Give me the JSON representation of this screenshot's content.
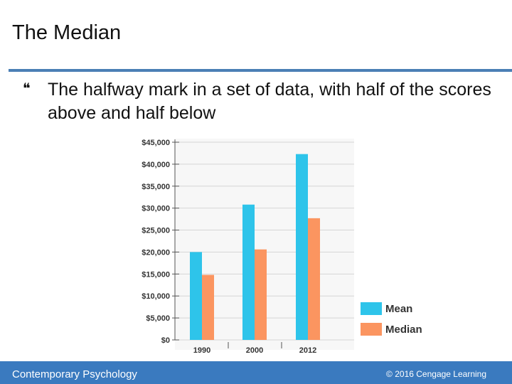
{
  "slide": {
    "title": "The Median",
    "bullet_icon": "bullet-arrow-icon",
    "bullet_text": "The halfway mark in a set of data, with half of the scores above and half below"
  },
  "footer": {
    "left": "Contemporary Psychology",
    "right": "© 2016 Cengage Learning"
  },
  "colors": {
    "mean": "#2ec4ea",
    "median": "#fb9560",
    "footer": "#3a7abf",
    "rule": "#4a7fb5"
  },
  "chart_data": {
    "type": "bar",
    "categories": [
      "1990",
      "2000",
      "2012"
    ],
    "series": [
      {
        "name": "Mean",
        "values": [
          20000,
          30800,
          42300
        ]
      },
      {
        "name": "Median",
        "values": [
          14800,
          20600,
          27700
        ]
      }
    ],
    "yticks": [
      "$0",
      "$5,000",
      "$10,000",
      "$15,000",
      "$20,000",
      "$25,000",
      "$30,000",
      "$35,000",
      "$40,000",
      "$45,000"
    ],
    "ylim": [
      0,
      45000
    ],
    "title": "",
    "xlabel": "",
    "ylabel": "",
    "grid": true,
    "legend": "bottom-right"
  }
}
